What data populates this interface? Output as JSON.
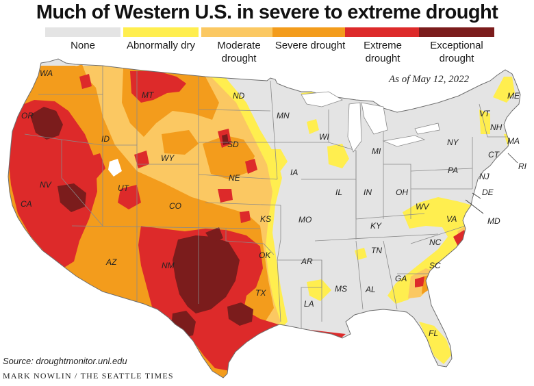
{
  "title": "Much of Western U.S. in severe to extreme drought",
  "date": "As of May 12, 2022",
  "source": "Source: droughtmonitor.unl.edu",
  "credit": "MARK NOWLIN / THE SEATTLE TIMES",
  "legend": [
    {
      "label": "None",
      "color": "#e4e4e4"
    },
    {
      "label": "Abnormally dry",
      "color": "#ffee4f"
    },
    {
      "label": "Moderate drought",
      "color": "#fbc862"
    },
    {
      "label": "Severe drought",
      "color": "#f39c1c"
    },
    {
      "label": "Extreme drought",
      "color": "#dd2a2a"
    },
    {
      "label": "Exceptional drought",
      "color": "#7b1c1c"
    }
  ],
  "states": {
    "WA": "WA",
    "OR": "OR",
    "CA": "CA",
    "NV": "NV",
    "ID": "ID",
    "MT": "MT",
    "WY": "WY",
    "UT": "UT",
    "CO": "CO",
    "AZ": "AZ",
    "NM": "NM",
    "ND": "ND",
    "SD": "SD",
    "NE": "NE",
    "KS": "KS",
    "OK": "OK",
    "TX": "TX",
    "MN": "MN",
    "IA": "IA",
    "MO": "MO",
    "AR": "AR",
    "LA": "LA",
    "WI": "WI",
    "IL": "IL",
    "MS": "MS",
    "MI": "MI",
    "IN": "IN",
    "KY": "KY",
    "TN": "TN",
    "AL": "AL",
    "OH": "OH",
    "GA": "GA",
    "FL": "FL",
    "SC": "SC",
    "NC": "NC",
    "VA": "VA",
    "WV": "WV",
    "PA": "PA",
    "NY": "NY",
    "VT": "VT",
    "NH": "NH",
    "ME": "ME",
    "MA": "MA",
    "CT": "CT",
    "RI": "RI",
    "NJ": "NJ",
    "DE": "DE",
    "MD": "MD"
  }
}
